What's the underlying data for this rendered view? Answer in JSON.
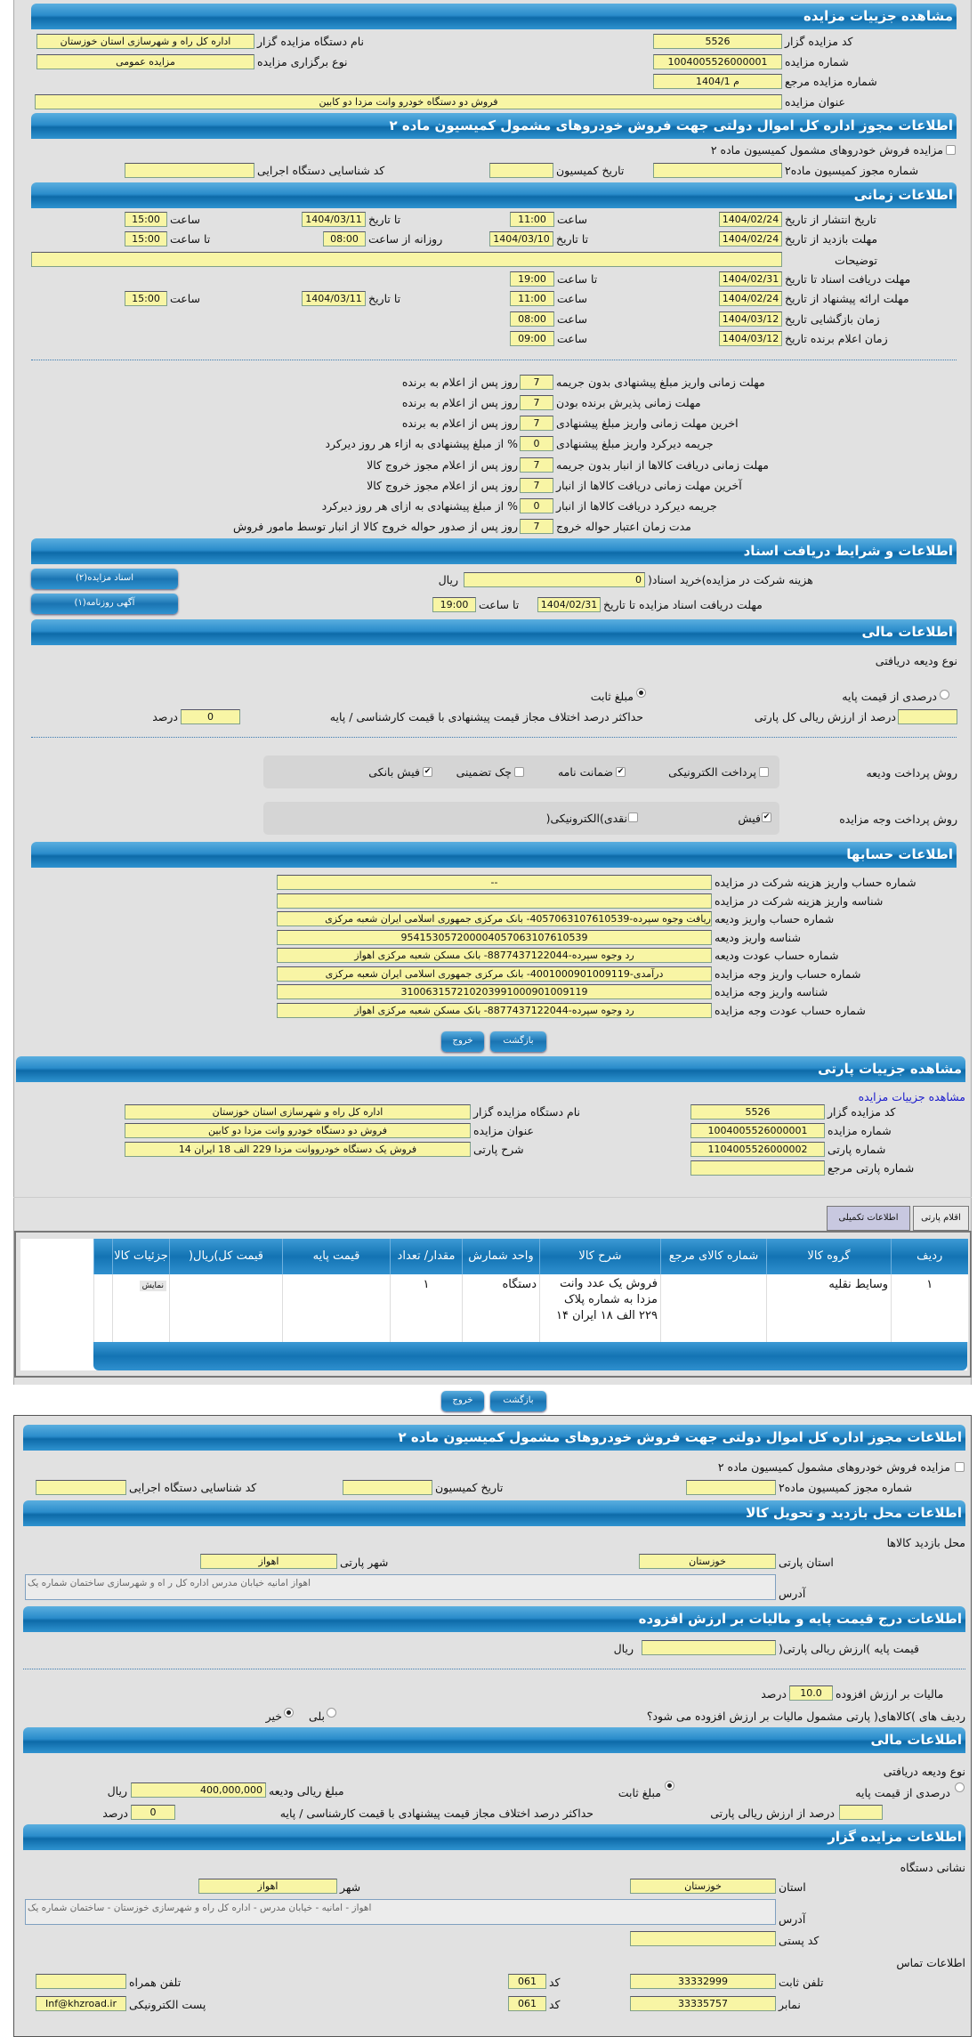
{
  "s1": {
    "title": "مشاهده جزییات مزایده",
    "code_label": "کد مزایده گزار",
    "code": "5526",
    "org_label": "نام دستگاه مزایده گزار",
    "org": "اداره کل راه و شهرسازی استان خوزستان",
    "num_label": "شماره مزایده",
    "num": "1004005526000001",
    "type_label": "نوع برگزاری مزایده",
    "type": "مزایده عمومی",
    "ref_label": "شماره مزایده مرجع",
    "ref": "م 1404/1",
    "subject_label": "عنوان مزایده",
    "subject": "فروش دو دستگاه خودرو وانت مزدا دو کابین"
  },
  "permit": {
    "title": "اطلاعات مجوز اداره کل اموال دولتی جهت فروش خودروهای مشمول کمیسیون ماده ۲",
    "checkbox_label": "مزایده فروش خودروهای مشمول کمیسیون ماده ۲",
    "permit_no_label": "شماره مجوز کمیسیون ماده۲",
    "date_label": "تاریخ کمیسیون",
    "exec_code_label": "کد شناسایی دستگاه اجرایی"
  },
  "time": {
    "title": "اطلاعات زمانی",
    "publish_label": "تاریخ انتشار از تاریخ",
    "publish_from": "1404/02/24",
    "hour": "ساعت",
    "publish_from_time": "11:00",
    "to_date": "تا تاریخ",
    "publish_to": "1404/03/11",
    "publish_to_time": "15:00",
    "visit_label": "مهلت بازدید از تاریخ",
    "visit_from": "1404/02/24",
    "visit_to": "1404/03/10",
    "daily_from": "روزانه از ساعت",
    "visit_daily_from": "08:00",
    "to_hour": "تا ساعت",
    "visit_daily_to": "15:00",
    "desc_label": "توضیحات",
    "docs_label": "مهلت دریافت اسناد تا تاریخ",
    "docs_to": "1404/02/31",
    "docs_to_time": "19:00",
    "offer_label": "مهلت ارائه پیشنهاد از تاریخ",
    "offer_from": "1404/02/24",
    "offer_from_time": "11:00",
    "offer_to": "1404/03/11",
    "offer_to_time": "15:00",
    "open_label": "زمان بازگشایی تاریخ",
    "open_date": "1404/03/12",
    "open_time": "08:00",
    "winner_label": "زمان اعلام برنده تاریخ",
    "winner_date": "1404/03/12",
    "winner_time": "09:00"
  },
  "terms": [
    {
      "label": "مهلت زمانی واریز مبلغ پیشنهادی بدون جریمه",
      "value": "7",
      "suffix": "روز پس از اعلام به برنده"
    },
    {
      "label": "مهلت زمانی پذیرش برنده بودن",
      "value": "7",
      "suffix": "روز پس از اعلام به برنده"
    },
    {
      "label": "اخرین مهلت زمانی واریز مبلغ پیشنهادی",
      "value": "7",
      "suffix": "روز پس از اعلام به برنده"
    },
    {
      "label": "جریمه دیرکرد واریز مبلغ پیشنهادی",
      "value": "0",
      "suffix": "% از مبلغ پیشنهادی به ازاء هر روز دیرکرد"
    },
    {
      "label": "مهلت زمانی دریافت کالاها از انبار بدون جریمه",
      "value": "7",
      "suffix": "روز پس از اعلام مجوز خروج کالا"
    },
    {
      "label": "آخرین مهلت زمانی دریافت کالاها از انبار",
      "value": "7",
      "suffix": "روز پس از اعلام مجوز خروج کالا"
    },
    {
      "label": "جریمه دیرکرد دریافت کالاها از انبار",
      "value": "0",
      "suffix": "% از مبلغ پیشنهادی به ازای هر روز دیرکرد"
    },
    {
      "label": "مدت زمان اعتبار حواله خروج",
      "value": "7",
      "suffix": "روز پس از صدور حواله خروج کالا از انبار توسط مامور فروش"
    }
  ],
  "docs": {
    "title": "اطلاعات و شرایط دریافت اسناد",
    "fee_label": "هزینه شرکت در مزایده)خرید اسناد(",
    "fee": "0",
    "rial": "ریال",
    "deadline_label": "مهلت دریافت اسناد مزایده تا تاریخ",
    "deadline_date": "1404/02/31",
    "to_hour": "تا ساعت",
    "deadline_time": "19:00",
    "btn_docs": "اسناد مزایده(۲)",
    "btn_ad": "آگهی روزنامه(۱)"
  },
  "finance": {
    "title": "اطلاعات مالی",
    "deposit_type": "نوع ودیعه دریافتی",
    "opt_percent": "درصدی از قیمت پایه",
    "opt_fixed": "مبلغ ثابت",
    "selected": "مبلغ ثابت",
    "percent_label": "درصد از ارزش ریالی کل پارتی",
    "max_diff_label": "حداکثر درصد اختلاف مجاز قیمت پیشنهادی با قیمت کارشناسی / پایه",
    "max_diff": "0",
    "percent": "درصد",
    "deposit_method_label": "روش پرداخت ودیعه",
    "deposit_methods": [
      {
        "label": "پرداخت الکترونیکی",
        "checked": false
      },
      {
        "label": "ضمانت نامه",
        "checked": true
      },
      {
        "label": "چک تضمینی",
        "checked": false
      },
      {
        "label": "فیش بانکی",
        "checked": true
      }
    ],
    "pay_method_label": "روش پرداخت وجه مزایده",
    "pay_methods": [
      {
        "label": "فیش",
        "checked": true
      },
      {
        "label": "نقدی)الکترونیکی(",
        "checked": false
      }
    ]
  },
  "accounts": {
    "title": "اطلاعات حسابها",
    "rows": [
      {
        "label": "شماره حساب واریز هزینه شرکت در مزایده",
        "value": "--"
      },
      {
        "label": "شناسه واریز هزینه شرکت در مزایده",
        "value": ""
      },
      {
        "label": "شماره حساب واریز ودیعه",
        "value": "ریافت وجوه سپرده-4057063107610539- بانک مرکزی جمهوری اسلامی ایران شعبه مرکزی"
      },
      {
        "label": "شناسه واریز ودیعه",
        "value": "954153057200004057063107610539"
      },
      {
        "label": "شماره حساب عودت ودیعه",
        "value": "رد وجوه سپرده-8877437122044- بانک مسکن شعبه مرکزی اهواز"
      },
      {
        "label": "شماره حساب واریز وجه مزایده",
        "value": "درآمدی-4001000901009119- بانک مرکزی جمهوری اسلامی ایران شعبه مرکزی"
      },
      {
        "label": "شناسه واریز وجه مزایده",
        "value": "310063157210203991000901009119"
      },
      {
        "label": "شماره حساب عودت وجه مزایده",
        "value": "رد وجوه سپرده-8877437122044- بانک مسکن شعبه مرکزی اهواز"
      }
    ]
  },
  "buttons": {
    "back": "بازگشت",
    "exit": "خروج"
  },
  "party": {
    "title": "مشاهده جزییات پارتی",
    "link": "مشاهده جزییات مزایده",
    "code_label": "کد مزایده گزار",
    "code": "5526",
    "num_label": "شماره مزایده",
    "num": "1004005526000001",
    "party_no_label": "شماره پارتی",
    "party_no": "1104005526000002",
    "party_ref_label": "شماره پارتی مرجع",
    "org_label": "نام دستگاه مزایده گزار",
    "org": "اداره کل راه و شهرسازی استان خوزستان",
    "subject_label": "عنوان مزایده",
    "subject": "فروش دو دستگاه خودرو وانت مزدا دو کابین",
    "desc_label": "شرح پارتی",
    "desc": "فروش یک دستگاه خودرووانت مزدا 229 الف 18 ایران 14",
    "tabs": [
      "اقلام پارتی",
      "اطلاعات تکمیلی"
    ],
    "active_tab": "اطلاعات تکمیلی",
    "columns": [
      "ردیف",
      "گروه کالا",
      "شماره کالای مرجع",
      "شرح کالا",
      "واحد شمارش",
      "مقدار/ تعداد",
      "قیمت پایه",
      "قیمت کل)ریال(",
      "جزئیات کالا"
    ],
    "rows": [
      [
        "١",
        "وسایط نقلیه",
        "",
        "فروش یک عدد وانت مزدا به شماره پلاک ٢٢٩ الف ١٨ ایران ١۴",
        "دستگاه",
        "١",
        "",
        "",
        "نمایش"
      ]
    ]
  },
  "visit": {
    "title": "اطلاعات محل بازدید و تحویل کالا",
    "place": "محل بازدید کالاها",
    "province_label": "استان پارتی",
    "province": "خوزستان",
    "city_label": "شهر پارتی",
    "city": "اهواز",
    "address_label": "آدرس",
    "address": "اهواز امانیه خیابان مدرس اداره کل ر اه و شهرسازی ساختمان شماره یک"
  },
  "price": {
    "title": "اطلاعات درج قیمت پایه و مالیات بر ارزش افزوده",
    "base_label": "قیمت پایه )ارزش ریالی پارتی(",
    "rial": "ریال",
    "vat_label": "مالیات بر ارزش افزوده",
    "vat": "10.0",
    "percent": "درصد",
    "question": "ردیف های )کالاهای( پارتی مشمول مالیات بر ارزش افزوده می شود؟",
    "yes": "بلی",
    "no": "خیر",
    "answer": "خیر"
  },
  "finance2": {
    "title": "اطلاعات مالی",
    "deposit_type": "نوع ودیعه دریافتی",
    "opt_percent": "درصدی از قیمت پایه",
    "opt_fixed": "مبلغ ثابت",
    "selected": "مبلغ ثابت",
    "amount_label": "مبلغ ریالی ودیعه",
    "amount": "400,000,000",
    "rial": "ریال",
    "percent_label": "درصد از ارزش ریالی پارتی",
    "max_diff_label": "حداکثر درصد اختلاف مجاز قیمت پیشنهادی با قیمت کارشناسی / پایه",
    "max_diff": "0",
    "percent": "درصد"
  },
  "auctioneer": {
    "title": "اطلاعات مزایده گزار",
    "address_title": "نشانی دستگاه",
    "province_label": "استان",
    "province": "خوزستان",
    "city_label": "شهر",
    "city": "اهواز",
    "address_label": "آدرس",
    "address": "اهواز - امانیه - خیابان مدرس - اداره کل راه و شهرسازی خوزستان - ساختمان شماره یک",
    "postal_label": "کد پستی",
    "contact_title": "اطلاعات تماس",
    "phone_label": "تلفن ثابت",
    "phone": "33332999",
    "code_label": "کد",
    "phone_code": "061",
    "mobile_label": "تلفن همراه",
    "fax_label": "نمابر",
    "fax": "33335757",
    "fax_code": "061",
    "email_label": "پست الکترونیکی",
    "email": "Inf@khzroad.ir"
  },
  "colors": {
    "header": "#1a7ab8",
    "field": "#f8f5a5",
    "panel": "#e1e1e1",
    "link": "#1a1acc",
    "active_tab": "#c8c8e0"
  }
}
